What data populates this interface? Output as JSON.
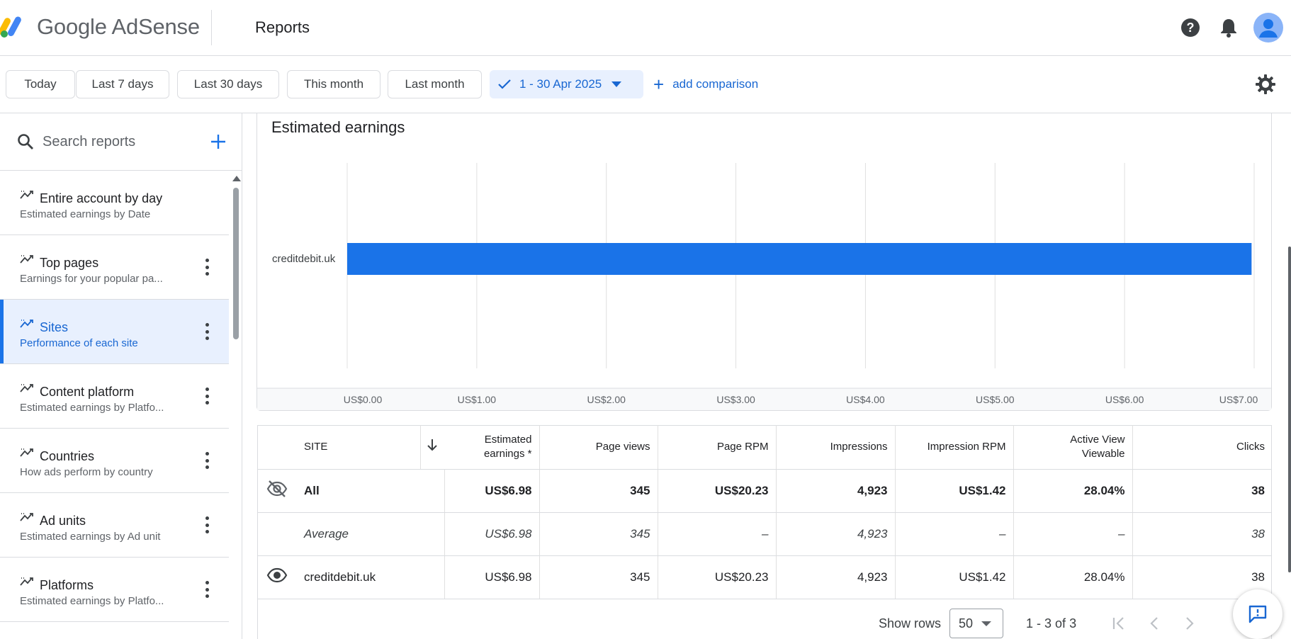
{
  "header": {
    "brand": "Google AdSense",
    "page_title": "Reports"
  },
  "datebar": {
    "presets": [
      "Today",
      "Last 7 days",
      "Last 30 days",
      "This month",
      "Last month"
    ],
    "selected_range": "1 - 30 Apr 2025",
    "add_comparison": "add comparison"
  },
  "sidebar": {
    "search_placeholder": "Search reports",
    "items": [
      {
        "title": "Entire account by day",
        "subtitle": "Estimated earnings by Date"
      },
      {
        "title": "Top pages",
        "subtitle": "Earnings for your popular pa..."
      },
      {
        "title": "Sites",
        "subtitle": "Performance of each site"
      },
      {
        "title": "Content platform",
        "subtitle": "Estimated earnings by Platfo..."
      },
      {
        "title": "Countries",
        "subtitle": "How ads perform by country"
      },
      {
        "title": "Ad units",
        "subtitle": "Estimated earnings by Ad unit"
      },
      {
        "title": "Platforms",
        "subtitle": "Estimated earnings by Platfo..."
      }
    ]
  },
  "chart": {
    "title": "Estimated earnings"
  },
  "chart_data": {
    "type": "bar",
    "orientation": "horizontal",
    "title": "Estimated earnings",
    "categories": [
      "creditdebit.uk"
    ],
    "values": [
      6.98
    ],
    "xlim": [
      0,
      7
    ],
    "x_ticks": [
      "US$0.00",
      "US$1.00",
      "US$2.00",
      "US$3.00",
      "US$4.00",
      "US$5.00",
      "US$6.00",
      "US$7.00"
    ],
    "grid": true,
    "bar_color": "#1a73e8"
  },
  "table": {
    "headers": [
      "SITE",
      "Estimated earnings *",
      "Page views",
      "Page RPM",
      "Impressions",
      "Impression RPM",
      "Active View Viewable",
      "Clicks"
    ],
    "header_lines": {
      "earnings_1": "Estimated",
      "earnings_2": "earnings *",
      "active_1": "Active View",
      "active_2": "Viewable"
    },
    "rows": [
      {
        "site": "All",
        "earnings": "US$6.98",
        "page_views": "345",
        "page_rpm": "US$20.23",
        "impressions": "4,923",
        "impression_rpm": "US$1.42",
        "active_view": "28.04%",
        "clicks": "38"
      },
      {
        "site": "Average",
        "earnings": "US$6.98",
        "page_views": "345",
        "page_rpm": "–",
        "impressions": "4,923",
        "impression_rpm": "–",
        "active_view": "–",
        "clicks": "38"
      },
      {
        "site": "creditdebit.uk",
        "earnings": "US$6.98",
        "page_views": "345",
        "page_rpm": "US$20.23",
        "impressions": "4,923",
        "impression_rpm": "US$1.42",
        "active_view": "28.04%",
        "clicks": "38"
      }
    ]
  },
  "pager": {
    "show_rows_label": "Show rows",
    "rows_value": "50",
    "range_text": "1 - 3 of 3"
  },
  "colors": {
    "accent": "#1a73e8",
    "accent_dark": "#1967d2",
    "active_bg": "#e8f0fe"
  },
  "icons": [
    "help-icon",
    "notifications-icon",
    "account-avatar-icon",
    "check-icon",
    "dropdown-caret-icon",
    "add-icon",
    "settings-gear-icon",
    "search-icon",
    "report-trend-icon",
    "more-vert-icon",
    "visibility-off-icon",
    "visibility-icon",
    "arrow-down-icon",
    "first-page-icon",
    "prev-page-icon",
    "next-page-icon",
    "feedback-icon"
  ]
}
